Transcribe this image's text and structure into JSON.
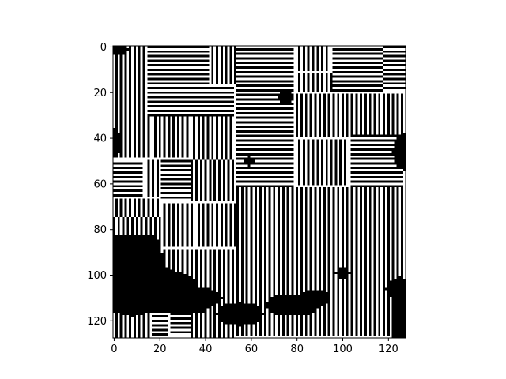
{
  "chart_data": {
    "type": "heatmap",
    "title": "",
    "xlabel": "",
    "ylabel": "",
    "width": 128,
    "height": 128,
    "xlim": [
      -0.5,
      127.5
    ],
    "ylim": [
      127.5,
      -0.5
    ],
    "y_axis_inverted": true,
    "grid": false,
    "legend": "none",
    "colormap": "gray",
    "values_domain": [
      0,
      1
    ],
    "x_ticks": [
      0,
      20,
      40,
      60,
      80,
      100,
      120
    ],
    "y_ticks": [
      0,
      20,
      40,
      60,
      80,
      100,
      120
    ],
    "x_tick_labels": [
      "0",
      "20",
      "40",
      "60",
      "80",
      "100",
      "120"
    ],
    "y_tick_labels": [
      "0",
      "20",
      "40",
      "60",
      "80",
      "100",
      "120"
    ],
    "pattern_description": "binary maze-like pattern of alternating 1-pixel black and white stripes organized in rectangular patches of horizontal or vertical orientation, with solid black regions at lower-left, bottom center, left edge near y=40, and right edge near y=45 and y=110"
  },
  "colors": {
    "on": "#ffffff",
    "off": "#000000",
    "axis": "#000000",
    "background": "#ffffff"
  }
}
